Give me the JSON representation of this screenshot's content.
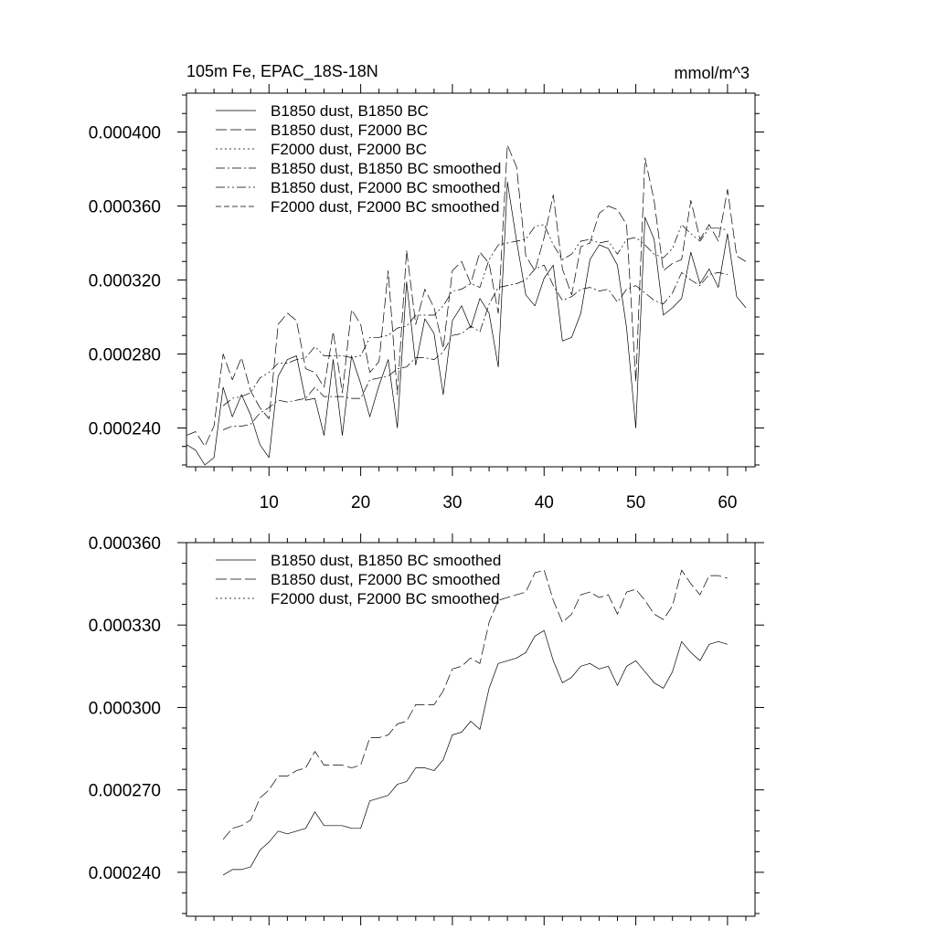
{
  "chart_data": [
    {
      "type": "line",
      "title_left": "105m Fe, EPAC_18S-18N",
      "title_right": "mmol/m^3",
      "xlabel": "",
      "ylabel": "",
      "xlim": [
        1,
        63
      ],
      "ylim": [
        0.000219,
        0.000421
      ],
      "x_ticks": [
        10,
        20,
        30,
        40,
        50,
        60
      ],
      "x_tick_labels": [
        "10",
        "20",
        "30",
        "40",
        "50",
        "60"
      ],
      "y_ticks": [
        0.00024,
        0.00028,
        0.00032,
        0.00036,
        0.0004
      ],
      "y_tick_labels": [
        "0.000240",
        "0.000280",
        "0.000320",
        "0.000360",
        "0.000400"
      ],
      "legend": "top-left",
      "series": [
        {
          "name": "B1850 dust, B1850 BC",
          "dash": "solid",
          "x_start": 1,
          "values": [
            0.000231,
            0.000228,
            0.00022,
            0.000224,
            0.000262,
            0.000246,
            0.000258,
            0.000247,
            0.000231,
            0.000224,
            0.000268,
            0.000277,
            0.000279,
            0.000255,
            0.000256,
            0.000236,
            0.000277,
            0.000236,
            0.000279,
            0.000264,
            0.000246,
            0.000263,
            0.000277,
            0.00024,
            0.000319,
            0.000274,
            0.000299,
            0.000291,
            0.000258,
            0.000298,
            0.000306,
            0.000294,
            0.00031,
            0.000302,
            0.000273,
            0.000373,
            0.000341,
            0.000312,
            0.000306,
            0.000321,
            0.000328,
            0.000287,
            0.000289,
            0.000302,
            0.000331,
            0.000339,
            0.000337,
            0.000328,
            0.000294,
            0.00024,
            0.000354,
            0.000342,
            0.000301,
            0.000305,
            0.00031,
            0.000335,
            0.000318,
            0.000326,
            0.000316,
            0.000345,
            0.000311,
            0.000305
          ]
        },
        {
          "name": "B1850 dust, F2000 BC",
          "dash": "long-dash",
          "x_start": 1,
          "values": [
            0.000236,
            0.000238,
            0.00023,
            0.000241,
            0.00028,
            0.000266,
            0.000278,
            0.00026,
            0.000251,
            0.000245,
            0.000296,
            0.000302,
            0.000298,
            0.000272,
            0.00027,
            0.000262,
            0.000292,
            0.000259,
            0.000304,
            0.000296,
            0.00027,
            0.000276,
            0.000325,
            0.000258,
            0.000336,
            0.000296,
            0.000315,
            0.000305,
            0.000283,
            0.000325,
            0.00033,
            0.000318,
            0.000335,
            0.000329,
            0.000302,
            0.000393,
            0.000381,
            0.000333,
            0.000325,
            0.000343,
            0.000366,
            0.000326,
            0.000312,
            0.000338,
            0.00034,
            0.000356,
            0.00036,
            0.000358,
            0.00035,
            0.000265,
            0.000386,
            0.000363,
            0.000325,
            0.000329,
            0.000331,
            0.000363,
            0.000342,
            0.00035,
            0.000341,
            0.000369,
            0.000333,
            0.00033
          ]
        },
        {
          "name": "F2000 dust, F2000 BC",
          "dash": "dotted",
          "x_start": 1,
          "values": []
        },
        {
          "name": "B1850 dust, B1850 BC smoothed",
          "dash": "dash-dot",
          "x_start": 5,
          "values": [
            0.000239,
            0.000241,
            0.000241,
            0.000242,
            0.000248,
            0.000251,
            0.000255,
            0.000254,
            0.000255,
            0.000256,
            0.000262,
            0.000257,
            0.000257,
            0.000257,
            0.000256,
            0.000256,
            0.000266,
            0.000267,
            0.000268,
            0.000272,
            0.000273,
            0.000278,
            0.000278,
            0.000277,
            0.000281,
            0.00029,
            0.000291,
            0.000295,
            0.000292,
            0.000307,
            0.000316,
            0.000317,
            0.000318,
            0.00032,
            0.000326,
            0.000328,
            0.000317,
            0.000309,
            0.000311,
            0.000315,
            0.000316,
            0.000314,
            0.000315,
            0.000308,
            0.000315,
            0.000317,
            0.000313,
            0.000309,
            0.000307,
            0.000313,
            0.000324,
            0.00032,
            0.000317,
            0.000323,
            0.000324,
            0.000323
          ]
        },
        {
          "name": "B1850 dust, F2000 BC smoothed",
          "dash": "dash-dot-dot",
          "x_start": 5,
          "values": [
            0.000252,
            0.000256,
            0.000257,
            0.000259,
            0.000267,
            0.00027,
            0.000275,
            0.000275,
            0.000277,
            0.000278,
            0.000284,
            0.000279,
            0.000279,
            0.000279,
            0.000278,
            0.000279,
            0.000289,
            0.000289,
            0.00029,
            0.000294,
            0.000295,
            0.000301,
            0.000301,
            0.000301,
            0.000306,
            0.000314,
            0.000315,
            0.000318,
            0.000316,
            0.000331,
            0.000339,
            0.00034,
            0.000341,
            0.000342,
            0.000349,
            0.00035,
            0.000339,
            0.000331,
            0.000334,
            0.000341,
            0.000342,
            0.00034,
            0.000341,
            0.000334,
            0.000342,
            0.000343,
            0.000339,
            0.000334,
            0.000332,
            0.000337,
            0.00035,
            0.000345,
            0.000341,
            0.000348,
            0.000348,
            0.000347
          ]
        },
        {
          "name": "F2000 dust, F2000 BC smoothed",
          "dash": "medium-dash",
          "x_start": 5,
          "values": []
        }
      ]
    },
    {
      "type": "line",
      "title_left": "",
      "title_right": "",
      "xlabel": "",
      "ylabel": "",
      "xlim": [
        1,
        63
      ],
      "ylim": [
        0.000224,
        0.00036
      ],
      "x_ticks": [
        10,
        20,
        30,
        40,
        50,
        60
      ],
      "x_tick_labels": [],
      "y_ticks": [
        0.00024,
        0.00027,
        0.0003,
        0.00033,
        0.00036
      ],
      "y_tick_labels": [
        "0.000240",
        "0.000270",
        "0.000300",
        "0.000330",
        "0.000360"
      ],
      "legend": "top-left",
      "series": [
        {
          "name": "B1850 dust, B1850 BC smoothed",
          "dash": "solid",
          "x_start": 5,
          "values": [
            0.000239,
            0.000241,
            0.000241,
            0.000242,
            0.000248,
            0.000251,
            0.000255,
            0.000254,
            0.000255,
            0.000256,
            0.000262,
            0.000257,
            0.000257,
            0.000257,
            0.000256,
            0.000256,
            0.000266,
            0.000267,
            0.000268,
            0.000272,
            0.000273,
            0.000278,
            0.000278,
            0.000277,
            0.000281,
            0.00029,
            0.000291,
            0.000295,
            0.000292,
            0.000307,
            0.000316,
            0.000317,
            0.000318,
            0.00032,
            0.000326,
            0.000328,
            0.000317,
            0.000309,
            0.000311,
            0.000315,
            0.000316,
            0.000314,
            0.000315,
            0.000308,
            0.000315,
            0.000317,
            0.000313,
            0.000309,
            0.000307,
            0.000313,
            0.000324,
            0.00032,
            0.000317,
            0.000323,
            0.000324,
            0.000323
          ]
        },
        {
          "name": "B1850 dust, F2000 BC smoothed",
          "dash": "long-dash",
          "x_start": 5,
          "values": [
            0.000252,
            0.000256,
            0.000257,
            0.000259,
            0.000267,
            0.00027,
            0.000275,
            0.000275,
            0.000277,
            0.000278,
            0.000284,
            0.000279,
            0.000279,
            0.000279,
            0.000278,
            0.000279,
            0.000289,
            0.000289,
            0.00029,
            0.000294,
            0.000295,
            0.000301,
            0.000301,
            0.000301,
            0.000306,
            0.000314,
            0.000315,
            0.000318,
            0.000316,
            0.000331,
            0.000339,
            0.00034,
            0.000341,
            0.000342,
            0.000349,
            0.00035,
            0.000339,
            0.000331,
            0.000334,
            0.000341,
            0.000342,
            0.00034,
            0.000341,
            0.000334,
            0.000342,
            0.000343,
            0.000339,
            0.000334,
            0.000332,
            0.000337,
            0.00035,
            0.000345,
            0.000341,
            0.000348,
            0.000348,
            0.000347
          ]
        },
        {
          "name": "F2000 dust, F2000 BC smoothed",
          "dash": "dotted",
          "x_start": 5,
          "values": []
        }
      ]
    }
  ]
}
